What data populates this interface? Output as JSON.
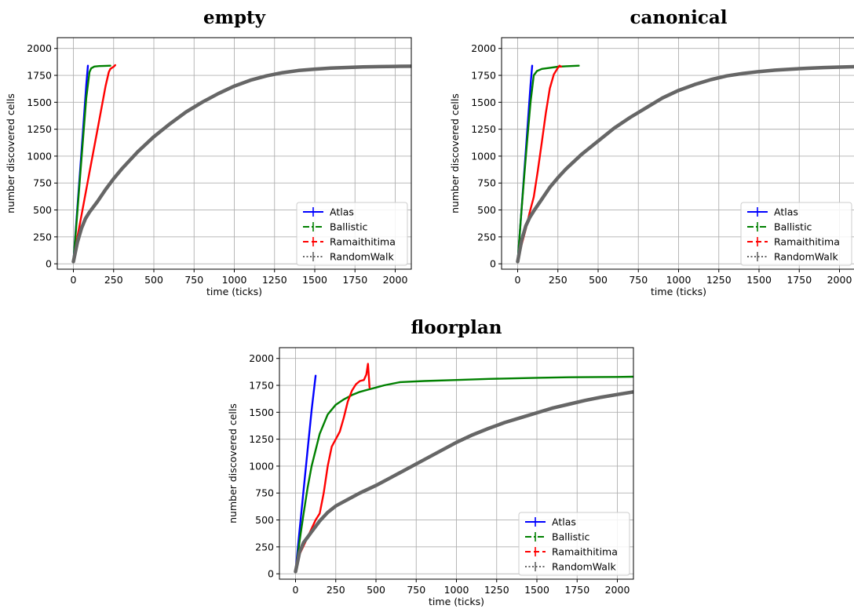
{
  "chart_data": [
    {
      "type": "line",
      "title": "empty",
      "xlabel": "time (ticks)",
      "ylabel": "number discovered cells",
      "xlim": [
        -100,
        2100
      ],
      "ylim": [
        -50,
        2100
      ],
      "xticks": [
        0,
        250,
        500,
        750,
        1000,
        1250,
        1500,
        1750,
        2000
      ],
      "yticks": [
        0,
        250,
        500,
        750,
        1000,
        1250,
        1500,
        1750,
        2000
      ],
      "grid": true,
      "legend_position": "lower-right",
      "series": [
        {
          "name": "Atlas",
          "color": "#0000ff",
          "dash": "solid",
          "x": [
            0,
            20,
            40,
            60,
            80,
            90
          ],
          "y": [
            20,
            420,
            830,
            1240,
            1660,
            1840
          ]
        },
        {
          "name": "Ballistic",
          "color": "#008000",
          "dash": "dashdot",
          "x": [
            0,
            20,
            40,
            60,
            80,
            100,
            110,
            130,
            160,
            200,
            230
          ],
          "y": [
            20,
            390,
            780,
            1160,
            1540,
            1780,
            1815,
            1832,
            1836,
            1838,
            1840
          ]
        },
        {
          "name": "Ramaithitima",
          "color": "#ff0000",
          "dash": "dashed",
          "x": [
            0,
            25,
            50,
            100,
            150,
            200,
            220,
            230,
            240,
            250,
            260
          ],
          "y": [
            20,
            250,
            450,
            850,
            1250,
            1650,
            1780,
            1810,
            1820,
            1830,
            1845
          ]
        },
        {
          "name": "RandomWalk",
          "color": "#666666",
          "dash": "dotted",
          "x": [
            0,
            25,
            50,
            75,
            100,
            150,
            200,
            250,
            300,
            400,
            500,
            600,
            700,
            800,
            900,
            1000,
            1100,
            1200,
            1300,
            1400,
            1500,
            1600,
            1700,
            1800,
            1900,
            2000,
            2100
          ],
          "y": [
            20,
            200,
            330,
            420,
            480,
            580,
            690,
            790,
            880,
            1040,
            1180,
            1300,
            1410,
            1500,
            1580,
            1650,
            1705,
            1745,
            1775,
            1795,
            1808,
            1817,
            1823,
            1828,
            1831,
            1833,
            1835
          ]
        }
      ]
    },
    {
      "type": "line",
      "title": "canonical",
      "xlabel": "time (ticks)",
      "ylabel": "number discovered cells",
      "xlim": [
        -100,
        2100
      ],
      "ylim": [
        -50,
        2100
      ],
      "xticks": [
        0,
        250,
        500,
        750,
        1000,
        1250,
        1500,
        1750,
        2000
      ],
      "yticks": [
        0,
        250,
        500,
        750,
        1000,
        1250,
        1500,
        1750,
        2000
      ],
      "grid": true,
      "legend_position": "lower-right",
      "series": [
        {
          "name": "Atlas",
          "color": "#0000ff",
          "dash": "solid",
          "x": [
            0,
            20,
            40,
            60,
            80,
            90
          ],
          "y": [
            20,
            420,
            830,
            1240,
            1660,
            1840
          ]
        },
        {
          "name": "Ballistic",
          "color": "#008000",
          "dash": "dashdot",
          "x": [
            0,
            20,
            40,
            60,
            80,
            100,
            120,
            150,
            200,
            250,
            300,
            380
          ],
          "y": [
            20,
            420,
            800,
            1160,
            1500,
            1750,
            1790,
            1810,
            1820,
            1830,
            1835,
            1840
          ]
        },
        {
          "name": "Ramaithitima",
          "color": "#ff0000",
          "dash": "dashed",
          "x": [
            0,
            25,
            50,
            75,
            100,
            125,
            150,
            175,
            200,
            225,
            250,
            260,
            270
          ],
          "y": [
            20,
            180,
            320,
            480,
            620,
            860,
            1130,
            1400,
            1630,
            1760,
            1820,
            1840,
            1830
          ]
        },
        {
          "name": "RandomWalk",
          "color": "#666666",
          "dash": "dotted",
          "x": [
            0,
            25,
            50,
            75,
            100,
            150,
            200,
            250,
            300,
            400,
            500,
            600,
            700,
            800,
            900,
            1000,
            1100,
            1200,
            1300,
            1400,
            1500,
            1600,
            1700,
            1800,
            1900,
            2000,
            2100
          ],
          "y": [
            20,
            220,
            350,
            430,
            490,
            600,
            710,
            800,
            880,
            1020,
            1140,
            1260,
            1360,
            1450,
            1540,
            1610,
            1665,
            1710,
            1745,
            1768,
            1785,
            1798,
            1808,
            1816,
            1822,
            1827,
            1830
          ]
        }
      ]
    },
    {
      "type": "line",
      "title": "floorplan",
      "xlabel": "time (ticks)",
      "ylabel": "number discovered cells",
      "xlim": [
        -100,
        2100
      ],
      "ylim": [
        -50,
        2100
      ],
      "xticks": [
        0,
        250,
        500,
        750,
        1000,
        1250,
        1500,
        1750,
        2000
      ],
      "yticks": [
        0,
        250,
        500,
        750,
        1000,
        1250,
        1500,
        1750,
        2000
      ],
      "grid": true,
      "legend_position": "lower-right",
      "series": [
        {
          "name": "Atlas",
          "color": "#0000ff",
          "dash": "solid",
          "x": [
            0,
            25,
            50,
            75,
            100,
            125
          ],
          "y": [
            20,
            400,
            780,
            1150,
            1520,
            1840
          ]
        },
        {
          "name": "Ballistic",
          "color": "#008000",
          "dash": "dashdot",
          "x": [
            0,
            25,
            50,
            75,
            100,
            150,
            200,
            250,
            300,
            350,
            400,
            450,
            500,
            550,
            650,
            800,
            1000,
            1200,
            1500,
            1700,
            2000,
            2100
          ],
          "y": [
            20,
            300,
            560,
            800,
            1000,
            1300,
            1480,
            1570,
            1620,
            1660,
            1690,
            1710,
            1730,
            1750,
            1780,
            1790,
            1800,
            1810,
            1820,
            1825,
            1828,
            1830
          ]
        },
        {
          "name": "Ramaithitima",
          "color": "#ff0000",
          "dash": "dashed",
          "x": [
            0,
            25,
            50,
            100,
            125,
            150,
            175,
            200,
            225,
            250,
            275,
            300,
            325,
            350,
            375,
            400,
            425,
            440,
            450,
            460
          ],
          "y": [
            20,
            180,
            260,
            420,
            500,
            560,
            750,
            1000,
            1180,
            1250,
            1320,
            1450,
            1600,
            1700,
            1760,
            1790,
            1800,
            1850,
            1950,
            1730
          ]
        },
        {
          "name": "RandomWalk",
          "color": "#666666",
          "dash": "dotted",
          "x": [
            0,
            25,
            50,
            75,
            100,
            150,
            200,
            250,
            300,
            400,
            500,
            600,
            700,
            800,
            900,
            1000,
            1100,
            1200,
            1300,
            1400,
            1500,
            1600,
            1700,
            1800,
            1900,
            2000,
            2100
          ],
          "y": [
            20,
            200,
            290,
            340,
            390,
            490,
            570,
            630,
            670,
            750,
            820,
            900,
            980,
            1060,
            1140,
            1220,
            1290,
            1350,
            1405,
            1450,
            1495,
            1540,
            1575,
            1610,
            1640,
            1665,
            1690
          ]
        }
      ]
    }
  ]
}
